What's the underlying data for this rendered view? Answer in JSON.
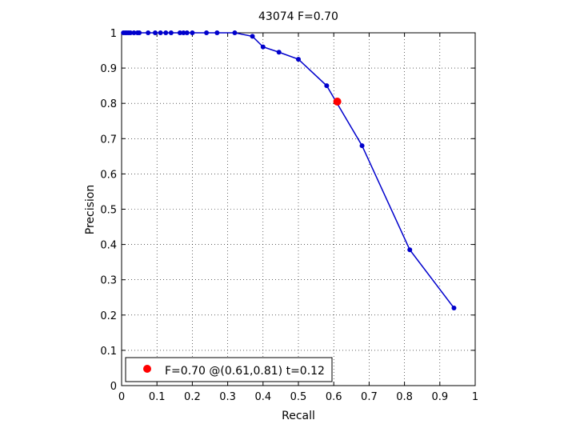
{
  "chart_data": {
    "type": "line",
    "title": "43074 F=0.70",
    "xlabel": "Recall",
    "ylabel": "Precision",
    "xlim": [
      0,
      1
    ],
    "ylim": [
      0,
      1
    ],
    "grid": true,
    "xticks": [
      0,
      0.1,
      0.2,
      0.3,
      0.4,
      0.5,
      0.6,
      0.7,
      0.8,
      0.9,
      1
    ],
    "yticks": [
      0,
      0.1,
      0.2,
      0.3,
      0.4,
      0.5,
      0.6,
      0.7,
      0.8,
      0.9,
      1
    ],
    "xtick_labels": [
      "0",
      "0.1",
      "0.2",
      "0.3",
      "0.4",
      "0.5",
      "0.6",
      "0.7",
      "0.8",
      "0.9",
      "1"
    ],
    "ytick_labels": [
      "0",
      "0.1",
      "0.2",
      "0.3",
      "0.4",
      "0.5",
      "0.6",
      "0.7",
      "0.8",
      "0.9",
      "1"
    ],
    "series": [
      {
        "color": "#0000cc",
        "x": [
          0.94,
          0.815,
          0.68,
          0.58,
          0.5,
          0.445,
          0.4,
          0.37,
          0.32,
          0.27,
          0.24,
          0.2,
          0.185,
          0.175,
          0.165,
          0.14,
          0.125,
          0.11,
          0.095,
          0.075,
          0.05,
          0.045,
          0.035,
          0.025,
          0.02,
          0.015,
          0.01,
          0.005
        ],
        "y": [
          0.22,
          0.385,
          0.68,
          0.85,
          0.925,
          0.945,
          0.96,
          0.99,
          1.0,
          1.0,
          1.0,
          1.0,
          1.0,
          1.0,
          1.0,
          1.0,
          1.0,
          1.0,
          1.0,
          1.0,
          1.0,
          1.0,
          1.0,
          1.0,
          1.0,
          1.0,
          1.0,
          1.0
        ]
      }
    ],
    "highlight_point": {
      "x": 0.61,
      "y": 0.805,
      "color": "#ff0000"
    },
    "legend": {
      "position": "bottom-left",
      "text": "F=0.70 @(0.61,0.81) t=0.12"
    }
  }
}
